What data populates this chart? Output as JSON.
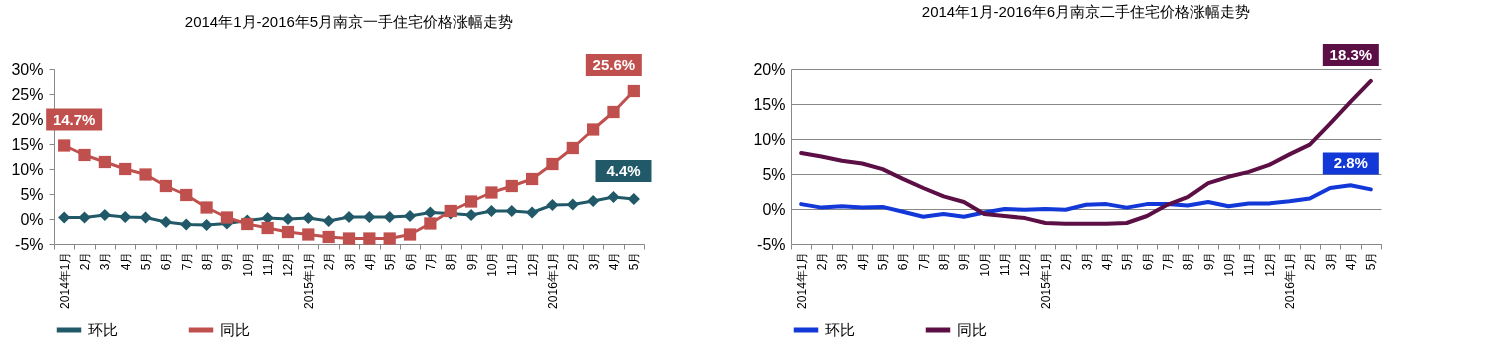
{
  "chart_data": [
    {
      "type": "line",
      "title": "2014年1月-2016年5月南京一手住宅价格涨幅走势",
      "categories": [
        "2014年1月",
        "2月",
        "3月",
        "4月",
        "5月",
        "6月",
        "7月",
        "8月",
        "9月",
        "10月",
        "11月",
        "12月",
        "2015年1月",
        "2月",
        "3月",
        "4月",
        "5月",
        "6月",
        "7月",
        "8月",
        "9月",
        "10月",
        "11月",
        "12月",
        "2016年1月",
        "2月",
        "3月",
        "4月",
        "5月"
      ],
      "series": [
        {
          "name": "环比",
          "color": "#215968",
          "marker": "diamond",
          "values": [
            0.3,
            0.3,
            0.8,
            0.4,
            0.3,
            -0.6,
            -1.1,
            -1.2,
            -0.9,
            -0.3,
            0.2,
            0,
            0.2,
            -0.4,
            0.4,
            0.4,
            0.4,
            0.6,
            1.3,
            1.1,
            0.8,
            1.6,
            1.6,
            1.3,
            2.8,
            2.9,
            3.6,
            4.4,
            4.0
          ],
          "value_labels": [
            null,
            null,
            null,
            null,
            null,
            null,
            null,
            null,
            null,
            null,
            null,
            null,
            null,
            null,
            null,
            null,
            null,
            null,
            null,
            null,
            null,
            null,
            null,
            null,
            null,
            null,
            null,
            "4.4%",
            null
          ]
        },
        {
          "name": "同比",
          "color": "#c0504d",
          "marker": "square",
          "values": [
            14.7,
            12.8,
            11.4,
            10.0,
            8.9,
            6.6,
            4.8,
            2.3,
            0.3,
            -1.0,
            -1.8,
            -2.6,
            -3.1,
            -3.6,
            -3.9,
            -3.9,
            -3.9,
            -3.1,
            -0.9,
            1.6,
            3.5,
            5.3,
            6.6,
            8.0,
            11.0,
            14.2,
            17.9,
            21.4,
            25.6
          ],
          "value_labels": [
            "14.7%",
            null,
            null,
            null,
            null,
            null,
            null,
            null,
            null,
            null,
            null,
            null,
            null,
            null,
            null,
            null,
            null,
            null,
            null,
            null,
            null,
            null,
            null,
            null,
            null,
            null,
            null,
            null,
            "25.6%"
          ]
        }
      ],
      "ylim": [
        -5,
        30
      ],
      "yticks": [
        {
          "value": -5,
          "label": "-5%"
        },
        {
          "value": 0,
          "label": "0%"
        },
        {
          "value": 5,
          "label": "5%"
        },
        {
          "value": 10,
          "label": "10%"
        },
        {
          "value": 15,
          "label": "15%"
        },
        {
          "value": 20,
          "label": "20%"
        },
        {
          "value": 25,
          "label": "25%"
        },
        {
          "value": 30,
          "label": "30%"
        }
      ],
      "legend": "bottom"
    },
    {
      "type": "line",
      "title": "2014年1月-2016年6月南京二手住宅价格涨幅走势",
      "categories": [
        "2014年1月",
        "2月",
        "3月",
        "4月",
        "5月",
        "6月",
        "7月",
        "8月",
        "9月",
        "10月",
        "11月",
        "12月",
        "2015年1月",
        "2月",
        "3月",
        "4月",
        "5月",
        "6月",
        "7月",
        "8月",
        "9月",
        "10月",
        "11月",
        "12月",
        "2016年1月",
        "2月",
        "3月",
        "4月",
        "5月"
      ],
      "series": [
        {
          "name": "环比",
          "color": "#1238d8",
          "values": [
            0.7,
            0.2,
            0.4,
            0.2,
            0.3,
            -0.4,
            -1.1,
            -0.7,
            -1.1,
            -0.5,
            0,
            -0.1,
            0,
            -0.1,
            0.6,
            0.7,
            0.2,
            0.7,
            0.7,
            0.5,
            1.0,
            0.4,
            0.8,
            0.8,
            1.1,
            1.5,
            3.0,
            3.4,
            2.8
          ],
          "value_labels": [
            null,
            null,
            null,
            null,
            null,
            null,
            null,
            null,
            null,
            null,
            null,
            null,
            null,
            null,
            null,
            null,
            null,
            null,
            null,
            null,
            null,
            null,
            null,
            null,
            null,
            null,
            null,
            null,
            "2.8%"
          ]
        },
        {
          "name": "同比",
          "color": "#5b0f45",
          "values": [
            8.0,
            7.5,
            6.9,
            6.5,
            5.7,
            4.3,
            3.0,
            1.8,
            1.0,
            -0.7,
            -1.0,
            -1.3,
            -2.0,
            -2.1,
            -2.1,
            -2.1,
            -2.0,
            -1.0,
            0.6,
            1.7,
            3.7,
            4.6,
            5.3,
            6.3,
            7.8,
            9.2,
            12.2,
            15.3,
            18.3
          ],
          "value_labels": [
            null,
            null,
            null,
            null,
            null,
            null,
            null,
            null,
            null,
            null,
            null,
            null,
            null,
            null,
            null,
            null,
            null,
            null,
            null,
            null,
            null,
            null,
            null,
            null,
            null,
            null,
            null,
            null,
            "18.3%"
          ]
        }
      ],
      "ylim": [
        -5,
        20
      ],
      "yticks": [
        {
          "value": -5,
          "label": "-5%"
        },
        {
          "value": 0,
          "label": "0%"
        },
        {
          "value": 5,
          "label": "5%"
        },
        {
          "value": 10,
          "label": "10%"
        },
        {
          "value": 15,
          "label": "15%"
        },
        {
          "value": 20,
          "label": "20%"
        }
      ],
      "grid": "y",
      "marker": "none",
      "legend": "bottom"
    }
  ]
}
